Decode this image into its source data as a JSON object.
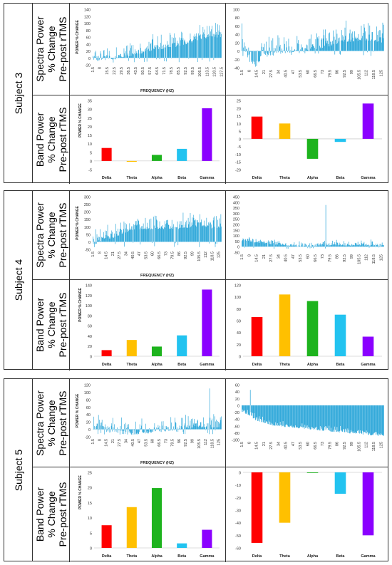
{
  "row_labels": {
    "spectra": [
      "Spectra Power",
      "% Change",
      "Pre-post rTMS"
    ],
    "band": [
      "Band Power",
      "% Change",
      "Pre-post rTMS"
    ]
  },
  "subjects": [
    "Subject 3",
    "Subject 4",
    "Subject 5"
  ],
  "colors": {
    "spectra": "#1a9fd6",
    "Delta": "#ff0000",
    "Theta": "#ffc000",
    "Alpha": "#1db31d",
    "Beta": "#22c3f0",
    "Gamma": "#8b00ff"
  },
  "chart_data": [
    {
      "id": "s3-spec-left",
      "type": "bar",
      "ylabel": "POWER % CHANGE",
      "xlabel": "FREQUENCY (HZ)",
      "ylim": [
        -20,
        140
      ],
      "yticks": [
        -20,
        0,
        20,
        40,
        60,
        80,
        100,
        120,
        140
      ],
      "xticks": [
        "1.5",
        "8",
        "15.5",
        "22.5",
        "29.5",
        "36.5",
        "43.5",
        "50.5",
        "57.5",
        "64.5",
        "71.5",
        "78.5",
        "85.5",
        "92.5",
        "99.5",
        "106.5",
        "113.5",
        "120.5",
        "127.5"
      ],
      "x_start": 1.5,
      "x_step": 0.5,
      "profile": [
        [
          1.5,
          5
        ],
        [
          30,
          12
        ],
        [
          60,
          35
        ],
        [
          90,
          50
        ],
        [
          110,
          70
        ],
        [
          128,
          75
        ]
      ],
      "noise": [
        -15,
        40
      ]
    },
    {
      "id": "s3-spec-right",
      "type": "bar",
      "ylabel": "",
      "xlabel": "",
      "ylim": [
        -40,
        100
      ],
      "yticks": [
        -40,
        -20,
        0,
        20,
        40,
        60,
        80,
        100
      ],
      "xticks": [
        "1.5",
        "8",
        "14.5",
        "21",
        "27.5",
        "34",
        "40.5",
        "47",
        "53.5",
        "60",
        "66.5",
        "73",
        "79.5",
        "86",
        "92.5",
        "99",
        "105.5",
        "112",
        "118.5",
        "125"
      ],
      "x_start": 1.5,
      "x_step": 0.5,
      "profile": [
        [
          1.5,
          30
        ],
        [
          8,
          -10
        ],
        [
          14,
          -25
        ],
        [
          22,
          0
        ],
        [
          40,
          10
        ],
        [
          66,
          15
        ],
        [
          90,
          35
        ],
        [
          112,
          40
        ],
        [
          125,
          35
        ]
      ],
      "noise": [
        -15,
        40
      ]
    },
    {
      "id": "s3-band-left",
      "type": "bar",
      "ylabel": "POWER % CHANGE",
      "categories": [
        "Delta",
        "Theta",
        "Alpha",
        "Beta",
        "Gamma"
      ],
      "values": [
        7.5,
        -0.5,
        3.5,
        7,
        30.5
      ],
      "ylim": [
        -5,
        35
      ],
      "yticks": [
        -5,
        0,
        5,
        10,
        15,
        20,
        25,
        30,
        35
      ]
    },
    {
      "id": "s3-band-right",
      "type": "bar",
      "ylabel": "",
      "categories": [
        "Delta",
        "Theta",
        "Alpha",
        "Beta",
        "Gamma"
      ],
      "values": [
        14.5,
        10,
        -13,
        -2,
        23
      ],
      "ylim": [
        -20,
        25
      ],
      "yticks": [
        -20,
        -15,
        -10,
        -5,
        0,
        5,
        10,
        15,
        20,
        25
      ]
    },
    {
      "id": "s4-spec-left",
      "type": "bar",
      "ylabel": "POWER % CHANGE",
      "xlabel": "FREQUENCY (HZ)",
      "ylim": [
        -50,
        300
      ],
      "yticks": [
        -50,
        0,
        50,
        100,
        150,
        200,
        250,
        300
      ],
      "xticks": [
        "1.5",
        "8",
        "14.5",
        "21",
        "27.5",
        "34",
        "40.5",
        "47",
        "53.5",
        "60",
        "66.5",
        "73",
        "79.5",
        "86",
        "92.5",
        "99",
        "105.5",
        "112",
        "118.5",
        "125"
      ],
      "x_start": 1.5,
      "x_step": 0.5,
      "profile": [
        [
          1.5,
          20
        ],
        [
          20,
          60
        ],
        [
          40,
          120
        ],
        [
          125,
          130
        ]
      ],
      "noise": [
        -40,
        80
      ]
    },
    {
      "id": "s4-spec-right",
      "type": "bar",
      "ylabel": "",
      "xlabel": "",
      "ylim": [
        -50,
        450
      ],
      "yticks": [
        -50,
        0,
        50,
        100,
        150,
        200,
        250,
        300,
        350,
        400,
        450
      ],
      "xticks": [
        "1.5",
        "8",
        "14.5",
        "21",
        "27.5",
        "34",
        "40.5",
        "47",
        "53.5",
        "60",
        "66.5",
        "73",
        "79.5",
        "86",
        "92.5",
        "99",
        "105.5",
        "112",
        "118.5",
        "125"
      ],
      "x_start": 1.5,
      "x_step": 0.5,
      "profile": [
        [
          1.5,
          70
        ],
        [
          30,
          40
        ],
        [
          55,
          15
        ],
        [
          75,
          30
        ],
        [
          125,
          30
        ]
      ],
      "noise": [
        -20,
        35
      ],
      "spike": [
        76,
        375
      ]
    },
    {
      "id": "s4-band-left",
      "type": "bar",
      "ylabel": "POWER % CHANGE",
      "categories": [
        "Delta",
        "Theta",
        "Alpha",
        "Beta",
        "Gamma"
      ],
      "values": [
        12,
        32,
        19,
        41,
        131
      ],
      "ylim": [
        0,
        140
      ],
      "yticks": [
        0,
        20,
        40,
        60,
        80,
        100,
        120,
        140
      ]
    },
    {
      "id": "s4-band-right",
      "type": "bar",
      "ylabel": "",
      "categories": [
        "Delta",
        "Theta",
        "Alpha",
        "Beta",
        "Gamma"
      ],
      "values": [
        66,
        104,
        93,
        70,
        33
      ],
      "ylim": [
        0,
        120
      ],
      "yticks": [
        0,
        20,
        40,
        60,
        80,
        100,
        120
      ]
    },
    {
      "id": "s5-spec-left",
      "type": "bar",
      "ylabel": "POWER % CHANGE",
      "xlabel": "FREQUENCY (HZ)",
      "ylim": [
        -20,
        120
      ],
      "yticks": [
        -20,
        0,
        20,
        40,
        60,
        80,
        100,
        120
      ],
      "xticks": [
        "1.5",
        "8",
        "14.5",
        "21",
        "27.5",
        "34",
        "40.5",
        "47",
        "53.5",
        "60",
        "66.5",
        "73",
        "79.5",
        "86",
        "92.5",
        "99",
        "105.5",
        "112",
        "118.5",
        "125"
      ],
      "x_start": 1.5,
      "x_step": 0.5,
      "profile": [
        [
          1.5,
          15
        ],
        [
          20,
          5
        ],
        [
          40,
          0
        ],
        [
          60,
          5
        ],
        [
          90,
          15
        ],
        [
          112,
          20
        ],
        [
          125,
          20
        ]
      ],
      "noise": [
        -15,
        30
      ],
      "spike": [
        116,
        110
      ]
    },
    {
      "id": "s5-spec-right",
      "type": "bar",
      "ylabel": "",
      "xlabel": "",
      "ylim": [
        -100,
        60
      ],
      "yticks": [
        -100,
        -80,
        -60,
        -40,
        -20,
        0,
        20,
        40,
        60
      ],
      "xticks": [
        "1.5",
        "8",
        "14.5",
        "21",
        "27.5",
        "34",
        "40.5",
        "47",
        "53.5",
        "60",
        "66.5",
        "73",
        "79.5",
        "86",
        "92.5",
        "99",
        "105.5",
        "112",
        "118.5",
        "125"
      ],
      "x_start": 1.5,
      "x_step": 0.5,
      "profile": [
        [
          1.5,
          -10
        ],
        [
          8,
          -20
        ],
        [
          14,
          -35
        ],
        [
          30,
          -50
        ],
        [
          60,
          -60
        ],
        [
          90,
          -70
        ],
        [
          125,
          -80
        ]
      ],
      "noise": [
        -10,
        10
      ],
      "spike": [
        9,
        45
      ]
    },
    {
      "id": "s5-band-left",
      "type": "bar",
      "ylabel": "POWER % CHANGE",
      "categories": [
        "Delta",
        "Theta",
        "Alpha",
        "Beta",
        "Gamma"
      ],
      "values": [
        7.5,
        13.5,
        19.8,
        1.5,
        6
      ],
      "ylim": [
        0,
        25
      ],
      "yticks": [
        0,
        5,
        10,
        15,
        20,
        25
      ]
    },
    {
      "id": "s5-band-right",
      "type": "bar",
      "ylabel": "",
      "categories": [
        "Delta",
        "Theta",
        "Alpha",
        "Beta",
        "Gamma"
      ],
      "values": [
        -56,
        -40,
        -0.5,
        -17,
        -50
      ],
      "ylim": [
        -60,
        0
      ],
      "yticks": [
        -60,
        -50,
        -40,
        -30,
        -20,
        -10,
        0
      ]
    }
  ]
}
